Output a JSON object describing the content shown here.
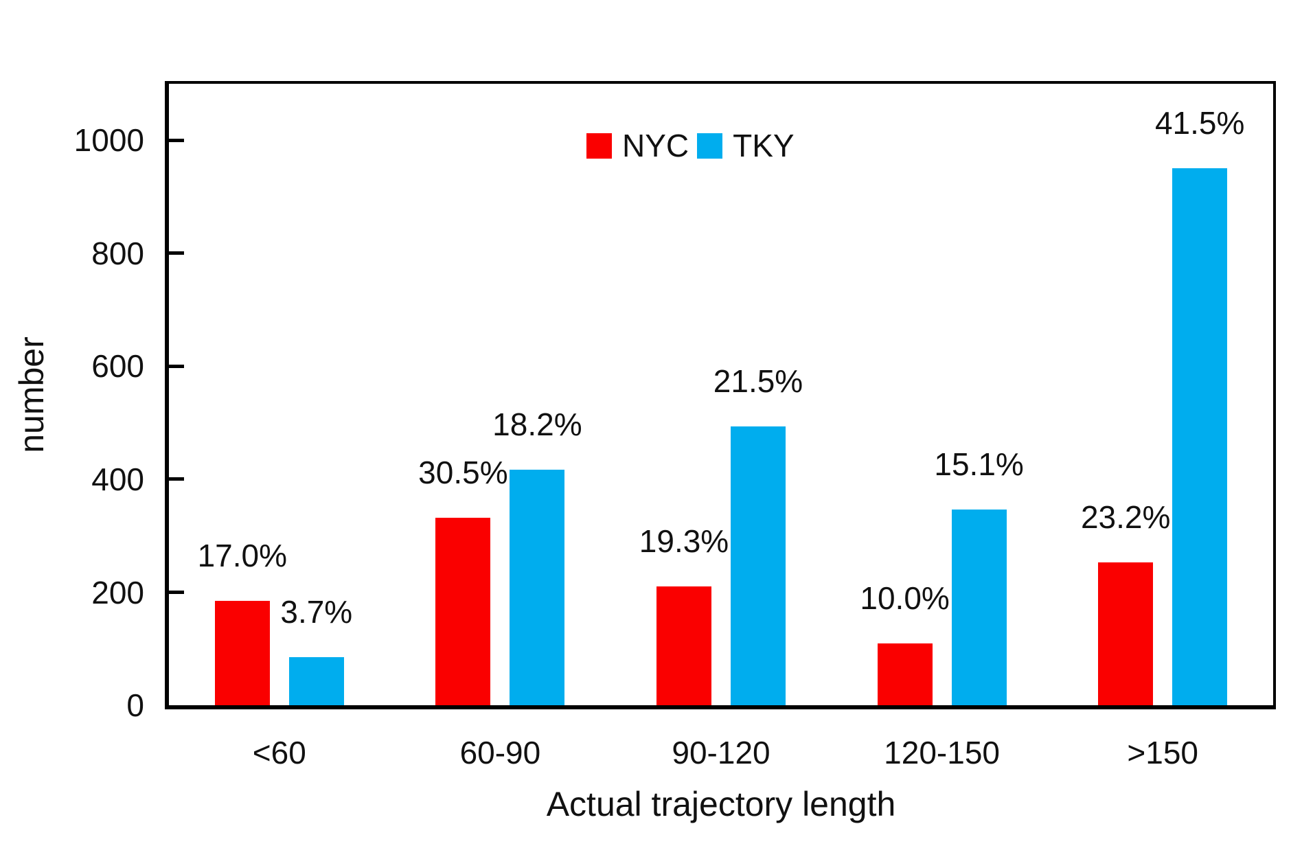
{
  "chart_data": {
    "type": "bar",
    "xlabel": "Actual trajectory length",
    "ylabel": "number",
    "categories": [
      "<60",
      "60-90",
      "90-120",
      "120-150",
      ">150"
    ],
    "series": [
      {
        "name": "NYC",
        "color": "#fa0000",
        "values": [
          185,
          332,
          210,
          109,
          253
        ],
        "percent_labels": [
          "17.0%",
          "30.5%",
          "19.3%",
          "10.0%",
          "23.2%"
        ]
      },
      {
        "name": "TKY",
        "color": "#00adee",
        "values": [
          85,
          417,
          493,
          346,
          951
        ],
        "percent_labels": [
          "3.7%",
          "18.2%",
          "21.5%",
          "15.1%",
          "41.5%"
        ]
      }
    ],
    "y_ticks": [
      0,
      200,
      400,
      600,
      800,
      1000
    ],
    "ylim": [
      0,
      1100
    ],
    "grid": false,
    "legend_position": "top-center-inside",
    "axis_color": "#000000"
  }
}
